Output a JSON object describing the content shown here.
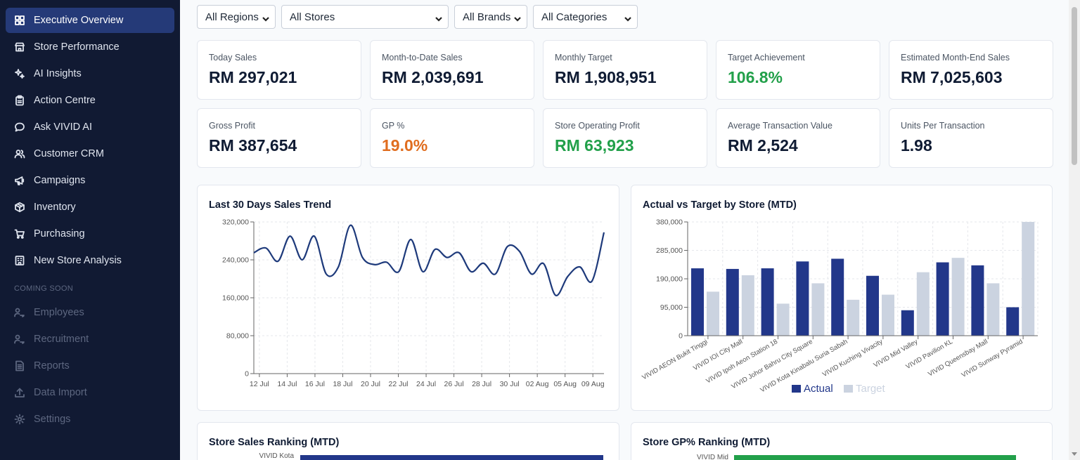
{
  "sidebar": {
    "items": [
      {
        "label": "Executive Overview",
        "icon": "dashboard-grid-icon",
        "active": true
      },
      {
        "label": "Store Performance",
        "icon": "store-icon"
      },
      {
        "label": "AI Insights",
        "icon": "sparkles-icon"
      },
      {
        "label": "Action Centre",
        "icon": "clipboard-icon"
      },
      {
        "label": "Ask VIVID AI",
        "icon": "chat-bubble-icon"
      },
      {
        "label": "Customer CRM",
        "icon": "users-icon"
      },
      {
        "label": "Campaigns",
        "icon": "megaphone-icon"
      },
      {
        "label": "Inventory",
        "icon": "package-icon"
      },
      {
        "label": "Purchasing",
        "icon": "cart-icon"
      },
      {
        "label": "New Store Analysis",
        "icon": "building-icon"
      }
    ],
    "coming_soon_label": "COMING SOON",
    "coming_soon_items": [
      {
        "label": "Employees",
        "icon": "user-key-icon"
      },
      {
        "label": "Recruitment",
        "icon": "user-key-icon"
      },
      {
        "label": "Reports",
        "icon": "document-icon"
      },
      {
        "label": "Data Import",
        "icon": "upload-icon"
      },
      {
        "label": "Settings",
        "icon": "gear-icon"
      }
    ]
  },
  "filters": {
    "region": "All Regions",
    "store": "All Stores",
    "brand": "All Brands",
    "category": "All Categories"
  },
  "kpis": [
    {
      "label": "Today Sales",
      "value": "RM 297,021"
    },
    {
      "label": "Month-to-Date Sales",
      "value": "RM 2,039,691"
    },
    {
      "label": "Monthly Target",
      "value": "RM 1,908,951"
    },
    {
      "label": "Target Achievement",
      "value": "106.8%",
      "color": "#22a04a"
    },
    {
      "label": "Estimated Month-End Sales",
      "value": "RM 7,025,603"
    },
    {
      "label": "Gross Profit",
      "value": "RM 387,654"
    },
    {
      "label": "GP %",
      "value": "19.0%",
      "color": "#e06d1f"
    },
    {
      "label": "Store Operating Profit",
      "value": "RM 63,923",
      "color": "#22a04a"
    },
    {
      "label": "Average Transaction Value",
      "value": "RM 2,524"
    },
    {
      "label": "Units Per Transaction",
      "value": "1.98"
    }
  ],
  "cards": {
    "trend_title": "Last 30 Days Sales Trend",
    "actual_target_title": "Actual vs Target by Store (MTD)",
    "sales_ranking_title": "Store Sales Ranking (MTD)",
    "gp_ranking_title": "Store GP% Ranking (MTD)",
    "sales_ranking_first_label": "VIVID Kota",
    "gp_ranking_first_label": "VIVID Mid"
  },
  "chart_data": [
    {
      "type": "line",
      "title": "Last 30 Days Sales Trend",
      "color": "#1e3a7b",
      "x_tick_labels": [
        "12 Jul",
        "14 Jul",
        "16 Jul",
        "18 Jul",
        "20 Jul",
        "22 Jul",
        "24 Jul",
        "26 Jul",
        "28 Jul",
        "30 Jul",
        "02 Aug",
        "05 Aug",
        "09 Aug"
      ],
      "y_tick_labels": [
        "0",
        "80,000",
        "160,000",
        "240,000",
        "320,000"
      ],
      "ylim": [
        0,
        320000
      ],
      "series": [
        {
          "values": [
            255000,
            265000,
            237000,
            290000,
            240000,
            290000,
            210000,
            225000,
            313000,
            245000,
            230000,
            235000,
            215000,
            283000,
            215000,
            262000,
            245000,
            255000,
            215000,
            233000,
            210000,
            268000,
            258000,
            210000,
            232000,
            165000,
            205000,
            225000,
            195000,
            298000
          ]
        }
      ]
    },
    {
      "type": "bar",
      "title": "Actual vs Target by Store (MTD)",
      "categories": [
        "VIVID AEON Bukit Tinggi",
        "VIVID IOI City Mall",
        "VIVID Ipoh Aeon Station 18",
        "VIVID Johor Bahru City Square",
        "VIVID Kota Kinabalu Suria Sabah",
        "VIVID Kuching Vivacity",
        "VIVID Mid Valley",
        "VIVID Pavilion KL",
        "VIVID Queensbay Mall",
        "VIVID Sunway Pyramid"
      ],
      "ylim": [
        0,
        380000
      ],
      "y_tick_labels": [
        "0",
        "95,000",
        "190,000",
        "285,000",
        "380,000"
      ],
      "series": [
        {
          "name": "Actual",
          "color": "#22378a",
          "values": [
            225000,
            223000,
            225000,
            248000,
            257000,
            200000,
            85000,
            245000,
            235000,
            95000
          ]
        },
        {
          "name": "Target",
          "color": "#cbd3e0",
          "values": [
            147000,
            202000,
            107000,
            175000,
            120000,
            137000,
            212000,
            260000,
            175000,
            380000
          ]
        }
      ]
    }
  ]
}
